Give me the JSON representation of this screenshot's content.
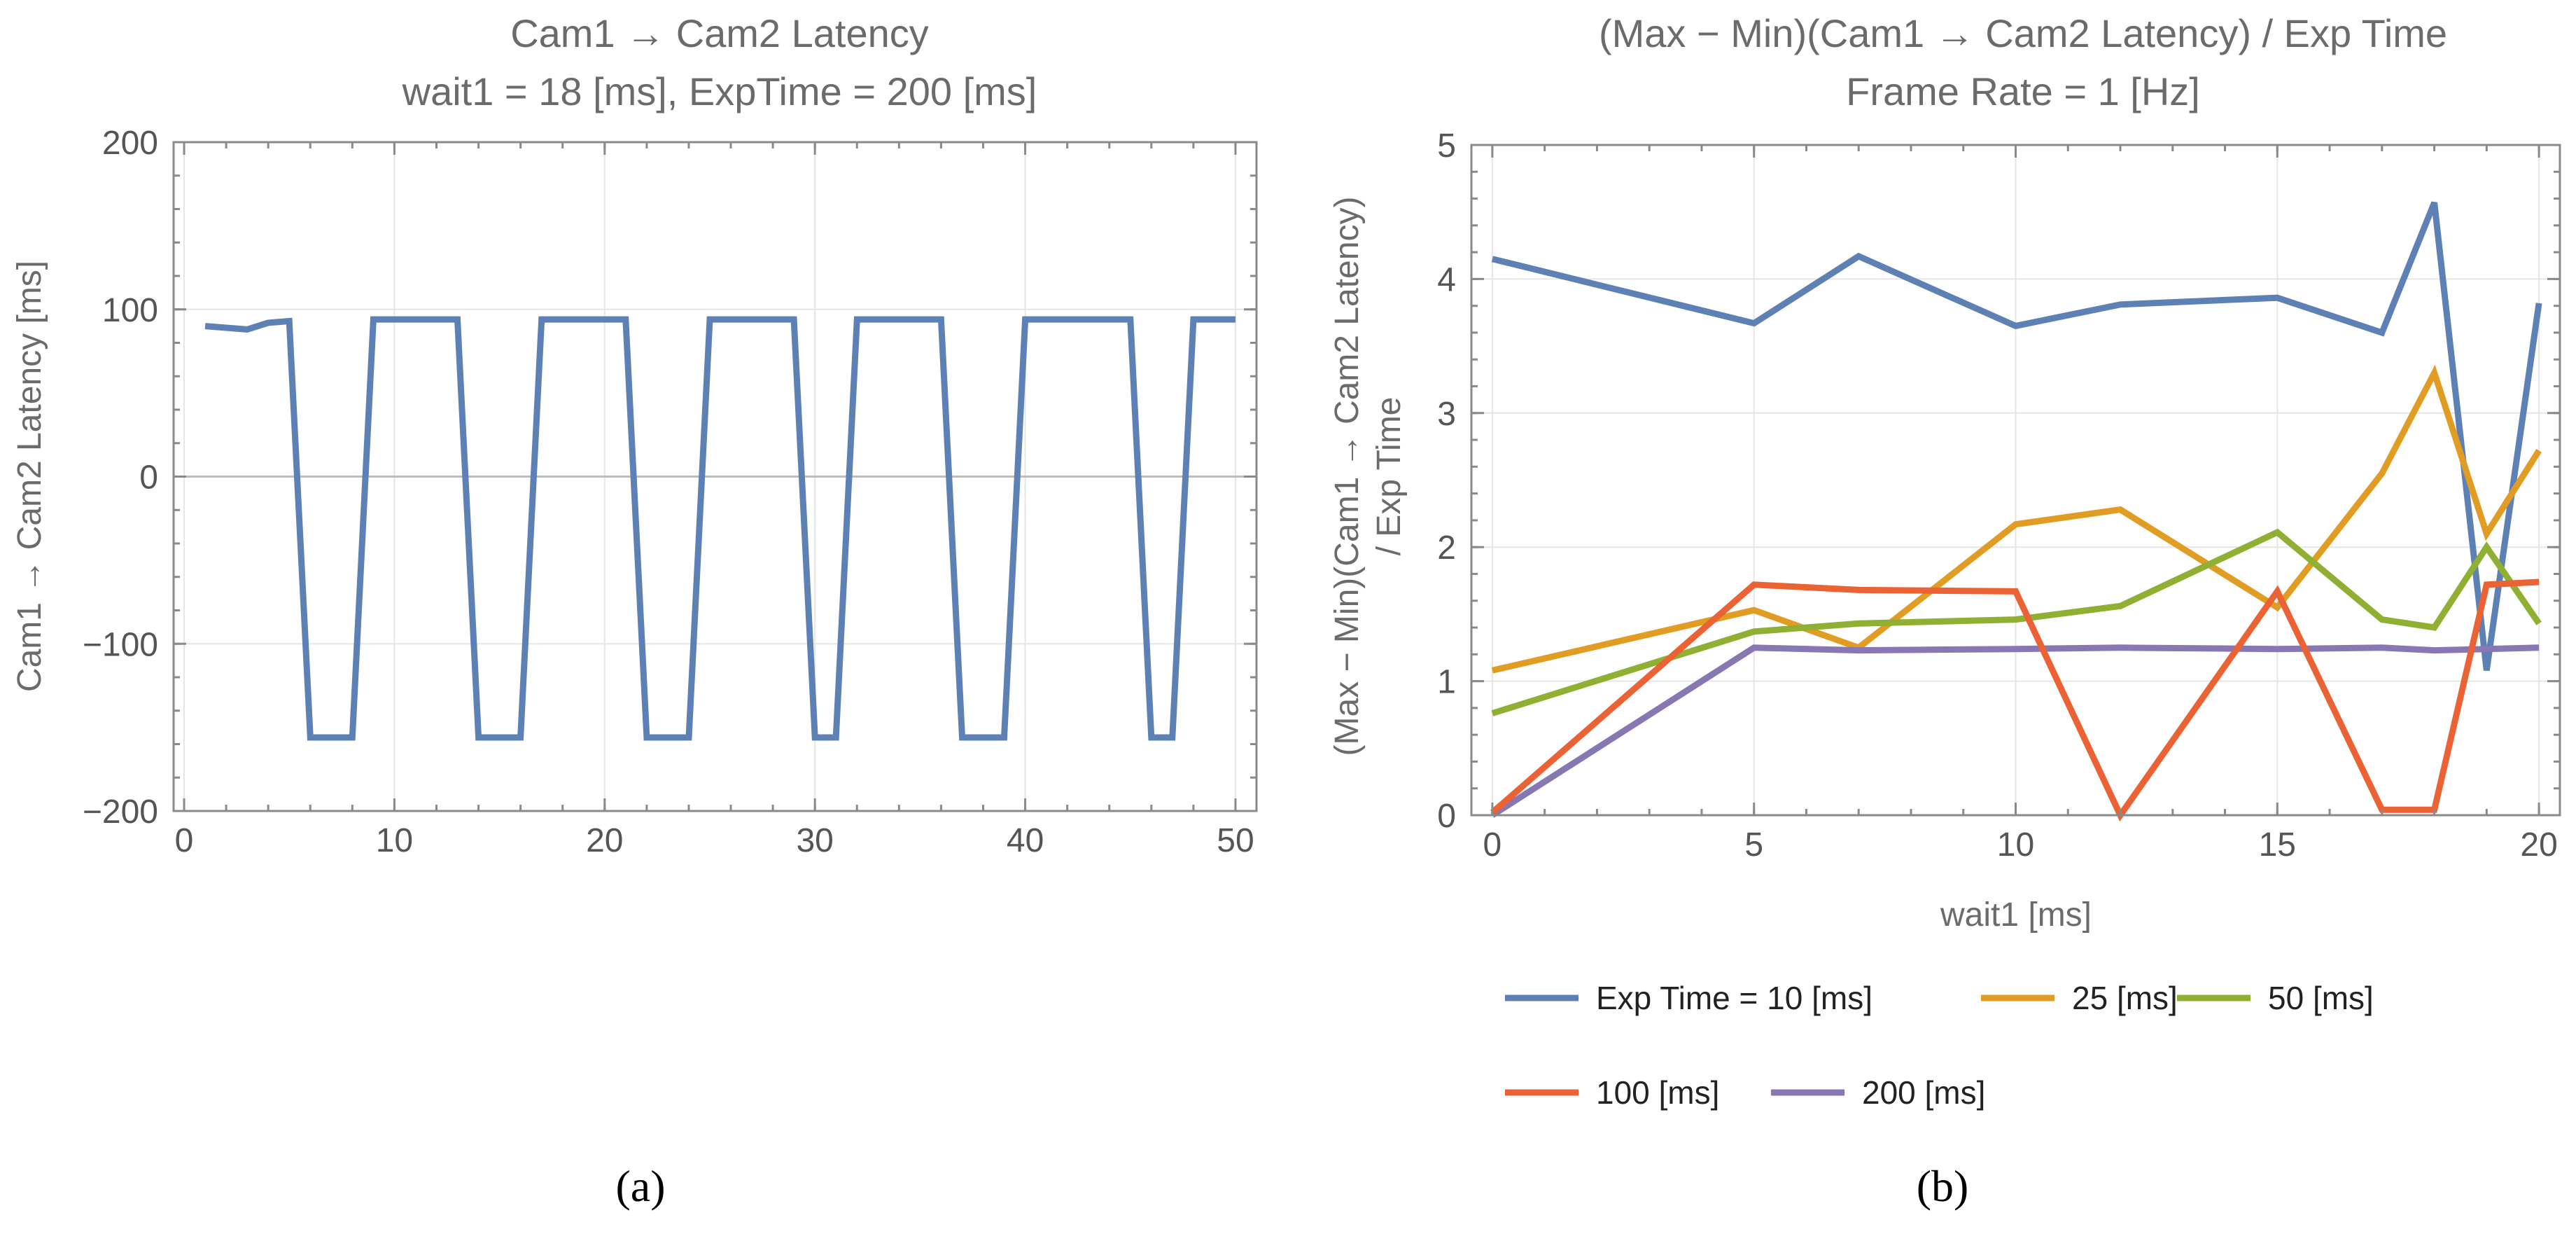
{
  "chart_data": [
    {
      "type": "line",
      "title": "Cam1 → Cam2 Latency",
      "subtitle": "wait1 = 18 [ms], ExpTime = 200 [ms]",
      "xlabel": "",
      "ylabel": "Cam1 → Cam2 Latency [ms]",
      "xlim": [
        -0.5,
        51
      ],
      "ylim": [
        -200,
        200
      ],
      "xticks": [
        0,
        10,
        20,
        30,
        40,
        50
      ],
      "yticks": [
        -200,
        -100,
        0,
        100,
        200
      ],
      "ytick_labels": [
        "−200",
        "−100",
        "0",
        "100",
        "200"
      ],
      "grid": true,
      "panel_label": "(a)",
      "series": [
        {
          "name": "latency",
          "color": "#5E81B5",
          "x": [
            1,
            2,
            3,
            4,
            5,
            6,
            7,
            8,
            9,
            10,
            11,
            12,
            13,
            14,
            15,
            16,
            17,
            18,
            19,
            20,
            21,
            22,
            23,
            24,
            25,
            26,
            27,
            28,
            29,
            30,
            31,
            32,
            33,
            34,
            35,
            36,
            37,
            38,
            39,
            40,
            41,
            42,
            43,
            44,
            45,
            46,
            47,
            48,
            49,
            50
          ],
          "y": [
            90,
            89,
            88,
            92,
            93,
            -156,
            -156,
            -156,
            94,
            94,
            94,
            94,
            94,
            -156,
            -156,
            -156,
            94,
            94,
            94,
            94,
            94,
            -156,
            -156,
            -156,
            94,
            94,
            94,
            94,
            94,
            -156,
            -156,
            94,
            94,
            94,
            94,
            94,
            -156,
            -156,
            -156,
            94,
            94,
            94,
            94,
            94,
            94,
            -156,
            -156,
            94,
            94,
            94
          ]
        }
      ]
    },
    {
      "type": "line",
      "title": "(Max − Min)(Cam1 → Cam2 Latency) / Exp Time",
      "subtitle": "Frame Rate = 1 [Hz]",
      "xlabel": "wait1 [ms]",
      "ylabel_line1": "(Max − Min)(Cam1 → Cam2 Latency)",
      "ylabel_line2": "/ Exp Time",
      "xlim": [
        -0.4,
        20.4
      ],
      "ylim": [
        0,
        5
      ],
      "xticks": [
        0,
        5,
        10,
        15,
        20
      ],
      "yticks": [
        0,
        1,
        2,
        3,
        4,
        5
      ],
      "grid": true,
      "legend": "bottom",
      "panel_label": "(b)",
      "x": [
        0,
        5,
        7,
        10,
        12,
        15,
        17,
        18,
        19,
        20
      ],
      "series": [
        {
          "name": "Exp Time = 10 [ms]",
          "color": "#5E81B5",
          "values": [
            4.15,
            3.67,
            4.17,
            3.65,
            3.81,
            3.86,
            3.6,
            4.57,
            1.08,
            3.82
          ]
        },
        {
          "name": "25 [ms]",
          "color": "#E19C24",
          "values": [
            1.08,
            1.53,
            1.25,
            2.17,
            2.28,
            1.55,
            2.55,
            3.3,
            2.1,
            2.72
          ]
        },
        {
          "name": "50 [ms]",
          "color": "#8FB032",
          "values": [
            0.76,
            1.37,
            1.43,
            1.46,
            1.56,
            2.11,
            1.46,
            1.4,
            2.0,
            1.43
          ]
        },
        {
          "name": "100 [ms]",
          "color": "#EB6235",
          "values": [
            0.02,
            1.72,
            1.68,
            1.67,
            0.0,
            1.67,
            0.04,
            0.04,
            1.72,
            1.74
          ]
        },
        {
          "name": "200 [ms]",
          "color": "#8778B3",
          "values": [
            0.0,
            1.25,
            1.23,
            1.24,
            1.25,
            1.24,
            1.25,
            1.23,
            1.24,
            1.25
          ]
        }
      ]
    }
  ]
}
